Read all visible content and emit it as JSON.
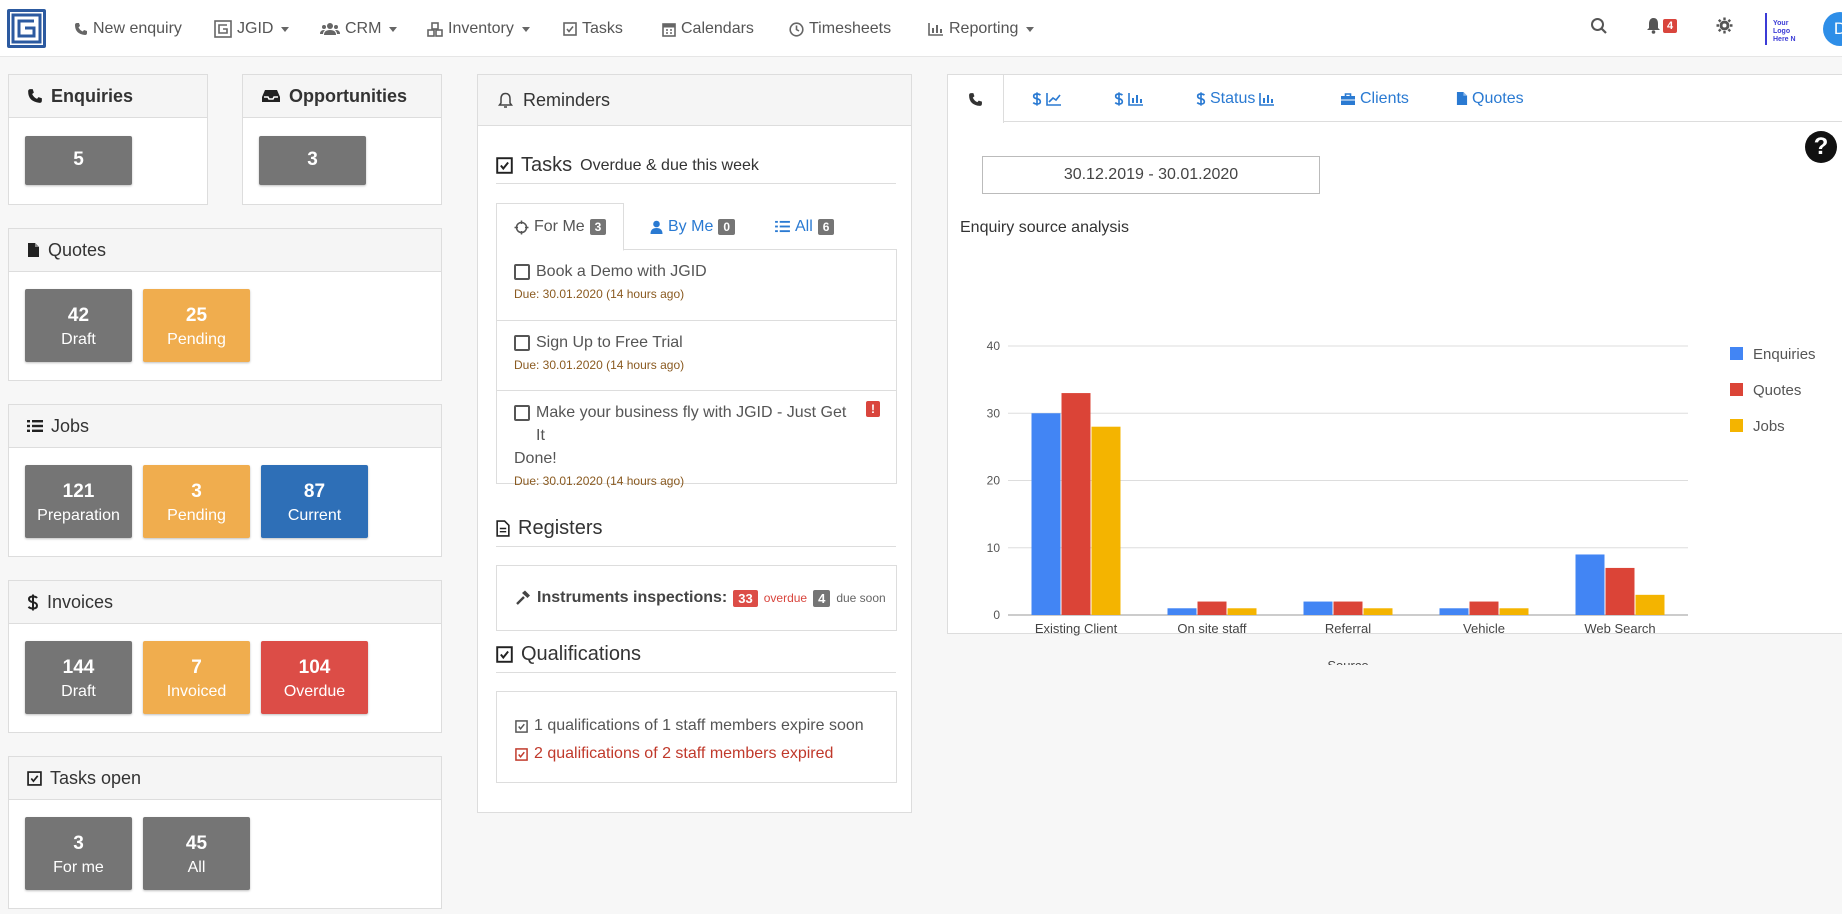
{
  "nav": {
    "items": [
      {
        "label": "New enquiry",
        "icon": "phone-icon"
      },
      {
        "label": "JGID",
        "icon": "logo-square-icon",
        "dropdown": true
      },
      {
        "label": "CRM",
        "icon": "users-icon",
        "dropdown": true
      },
      {
        "label": "Inventory",
        "icon": "cubes-icon",
        "dropdown": true
      },
      {
        "label": "Tasks",
        "icon": "check-square-icon"
      },
      {
        "label": "Calendars",
        "icon": "calendar-icon"
      },
      {
        "label": "Timesheets",
        "icon": "clock-icon"
      },
      {
        "label": "Reporting",
        "icon": "bar-chart-icon",
        "dropdown": true
      }
    ],
    "notification_count": "4",
    "brand_text": "Your Logo Here N",
    "avatar_initial": "D"
  },
  "enquiries": {
    "title": "Enquiries",
    "value": "5"
  },
  "opportunities": {
    "title": "Opportunities",
    "value": "3"
  },
  "quotes": {
    "title": "Quotes",
    "tiles": [
      {
        "value": "42",
        "label": "Draft"
      },
      {
        "value": "25",
        "label": "Pending"
      }
    ]
  },
  "jobs": {
    "title": "Jobs",
    "tiles": [
      {
        "value": "121",
        "label": "Preparation"
      },
      {
        "value": "3",
        "label": "Pending"
      },
      {
        "value": "87",
        "label": "Current"
      }
    ]
  },
  "invoices": {
    "title": "Invoices",
    "tiles": [
      {
        "value": "144",
        "label": "Draft"
      },
      {
        "value": "7",
        "label": "Invoiced"
      },
      {
        "value": "104",
        "label": "Overdue"
      }
    ]
  },
  "tasks_open": {
    "title": "Tasks open",
    "tiles": [
      {
        "value": "3",
        "label": "For me"
      },
      {
        "value": "45",
        "label": "All"
      }
    ]
  },
  "reminders": {
    "title": "Reminders",
    "tasks_title": "Tasks",
    "tasks_subtitle": "Overdue & due this week",
    "tabs": [
      {
        "label": "For Me",
        "count": "3"
      },
      {
        "label": "By Me",
        "count": "0"
      },
      {
        "label": "All",
        "count": "6"
      }
    ],
    "tasks": [
      {
        "title": "Book a Demo with JGID",
        "due": "Due: 30.01.2020 (14 hours ago)"
      },
      {
        "title": "Sign Up to Free Trial",
        "due": "Due: 30.01.2020 (14 hours ago)"
      },
      {
        "title_line1": "Make your business fly with JGID - Just Get It",
        "title_line2": "Done!",
        "flag": "!",
        "due": "Due: 30.01.2020 (14 hours ago)"
      }
    ],
    "registers_title": "Registers",
    "registers": {
      "label": "Instruments inspections:",
      "overdue_count": "33",
      "overdue_text": "overdue",
      "soon_count": "4",
      "soon_text": "due soon"
    },
    "qualifications_title": "Qualifications",
    "qualifications": {
      "soon": "1 qualifications of 1 staff members expire soon",
      "expired": "2 qualifications of 2 staff members expired"
    }
  },
  "chart_panel": {
    "tabs": [
      {
        "name": "phone-tab",
        "label": ""
      },
      {
        "name": "dollar-line-tab",
        "label": ""
      },
      {
        "name": "dollar-bar-tab",
        "label": ""
      },
      {
        "name": "status-tab",
        "label": "Status"
      },
      {
        "name": "clients-tab",
        "label": "Clients"
      },
      {
        "name": "quotes-tab",
        "label": "Quotes"
      }
    ],
    "date_range": "30.12.2019 - 30.01.2020",
    "help_glyph": "?"
  },
  "chart_data": {
    "type": "bar",
    "title": "Enquiry source analysis",
    "xlabel": "Source",
    "ylabel": "",
    "ylim": [
      0,
      40
    ],
    "yticks": [
      "0",
      "10",
      "20",
      "30",
      "40"
    ],
    "grid": true,
    "legend_position": "right",
    "categories": [
      "Existing Client",
      "On site staff",
      "Referral",
      "Vehicle",
      "Web Search"
    ],
    "series": [
      {
        "name": "Enquiries",
        "color": "#4285f4",
        "values": [
          30,
          1,
          2,
          1,
          9
        ]
      },
      {
        "name": "Quotes",
        "color": "#db4437",
        "values": [
          33,
          2,
          2,
          2,
          7
        ]
      },
      {
        "name": "Jobs",
        "color": "#f4b400",
        "values": [
          28,
          1,
          1,
          1,
          3
        ]
      }
    ]
  }
}
